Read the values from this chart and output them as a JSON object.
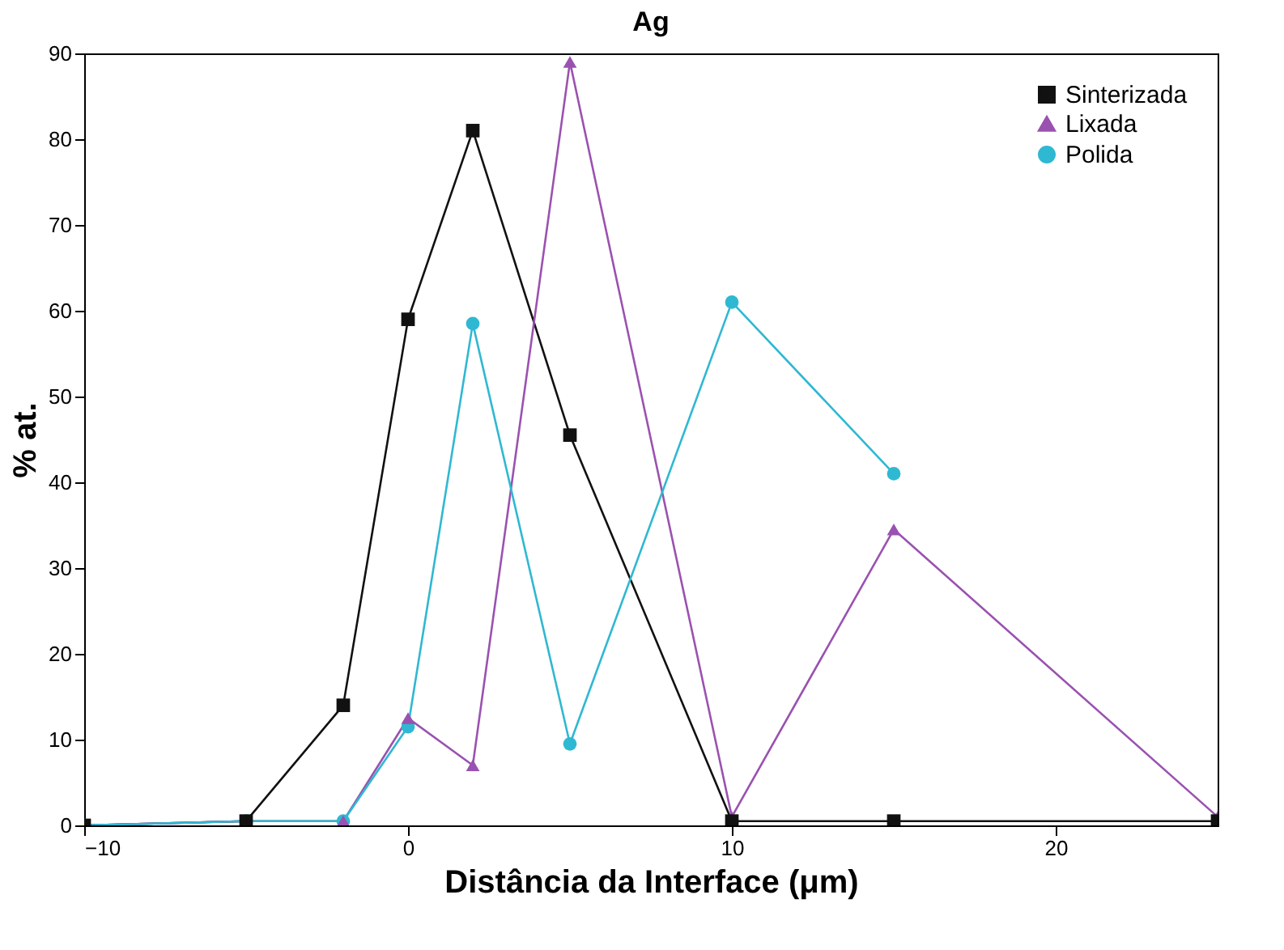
{
  "chart_data": {
    "type": "line",
    "title": "Ag",
    "xlabel": "Distância da Interface (μm)",
    "ylabel": "% at.",
    "x": [
      -10,
      -5,
      -2,
      0,
      2,
      5,
      10,
      15,
      25
    ],
    "xlim": [
      -10,
      25
    ],
    "xticks": [
      -10,
      0,
      10,
      20
    ],
    "ylim": [
      0,
      90
    ],
    "yticks": [
      0,
      10,
      20,
      30,
      40,
      50,
      60,
      70,
      80,
      90
    ],
    "legend": "top right",
    "grid": false,
    "series": [
      {
        "name": "Sinterizada",
        "color": "#111111",
        "marker": "square",
        "values": [
          0,
          0.5,
          14,
          59,
          81,
          45.5,
          0.5,
          0.5,
          0.5
        ]
      },
      {
        "name": "Lixada",
        "color": "#9a52b0",
        "marker": "triangle",
        "values": [
          0,
          0.5,
          0.5,
          12.5,
          7,
          89,
          1,
          34.5,
          1
        ]
      },
      {
        "name": "Polida",
        "color": "#2fb8d2",
        "marker": "circle",
        "values": [
          0,
          0.5,
          0.5,
          11.5,
          58.5,
          9.5,
          61,
          41,
          null
        ]
      }
    ]
  }
}
